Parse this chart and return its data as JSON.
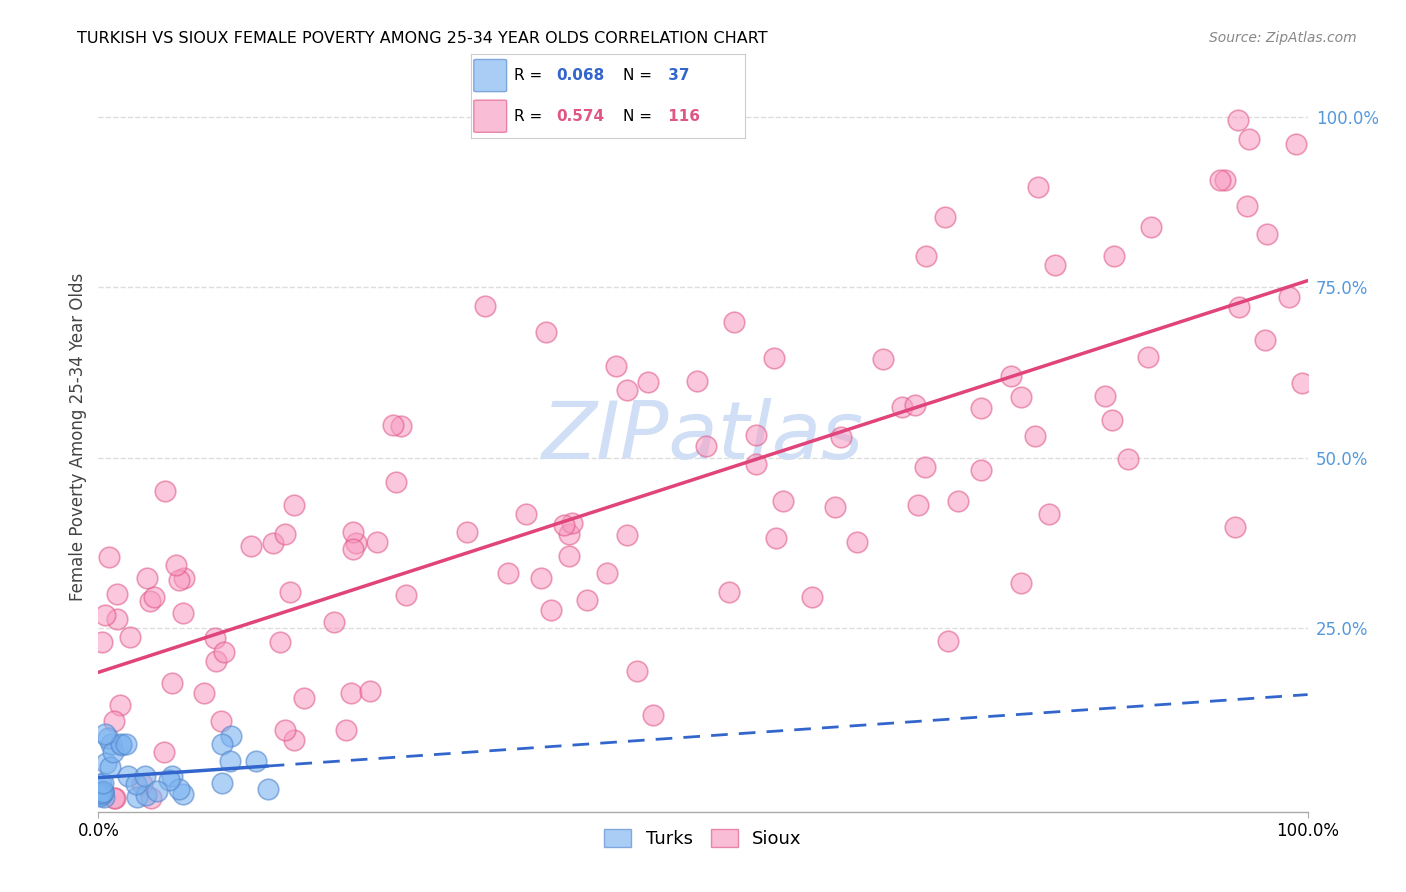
{
  "title": "TURKISH VS SIOUX FEMALE POVERTY AMONG 25-34 YEAR OLDS CORRELATION CHART",
  "source": "Source: ZipAtlas.com",
  "ylabel": "Female Poverty Among 25-34 Year Olds",
  "turks_R": 0.068,
  "turks_N": 37,
  "sioux_R": 0.574,
  "sioux_N": 116,
  "turks_color": "#7bb3f0",
  "sioux_color": "#f79ac0",
  "turks_edge_color": "#5588cc",
  "sioux_edge_color": "#e05585",
  "turks_line_color": "#3366cc",
  "sioux_line_color": "#e0447a",
  "watermark_color": "#d0dff5",
  "right_tick_color": "#5599dd",
  "grid_color": "#dddddd"
}
